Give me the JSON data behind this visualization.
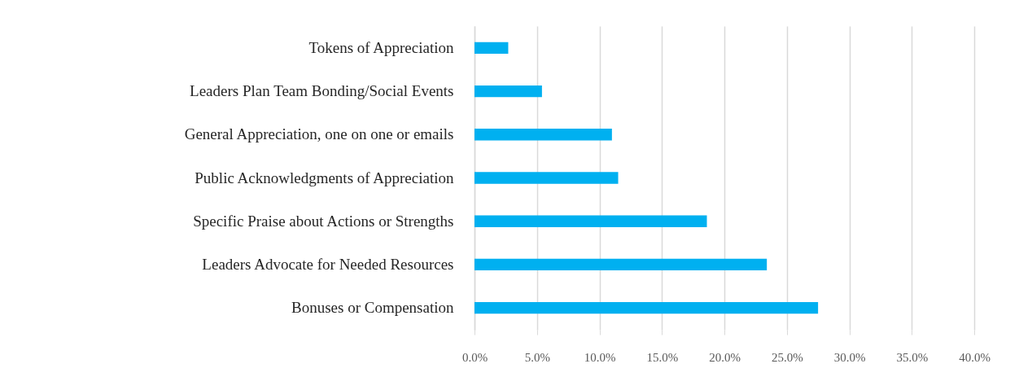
{
  "chart_data": {
    "type": "bar",
    "orientation": "horizontal",
    "categories": [
      "Tokens of Appreciation",
      "Leaders Plan Team Bonding/Social Events",
      "General Appreciation, one on one or emails",
      "Public Acknowledgments of Appreciation",
      "Specific Praise about Actions or Strengths",
      "Leaders Advocate for Needed Resources",
      "Bonuses or Compensation"
    ],
    "values": [
      2.7,
      5.4,
      11.0,
      11.5,
      18.6,
      23.4,
      27.5
    ],
    "color": "#00b0f0",
    "xlim": [
      0,
      40
    ],
    "xticks": [
      {
        "value": 0,
        "label": "0.0%"
      },
      {
        "value": 5,
        "label": "5.0%"
      },
      {
        "value": 10,
        "label": "10.0%"
      },
      {
        "value": 15,
        "label": "15.0%"
      },
      {
        "value": 20,
        "label": "20.0%"
      },
      {
        "value": 25,
        "label": "25.0%"
      },
      {
        "value": 30,
        "label": "30.0%"
      },
      {
        "value": 35,
        "label": "35.0%"
      },
      {
        "value": 40,
        "label": "40.0%"
      }
    ],
    "grid": "x"
  }
}
